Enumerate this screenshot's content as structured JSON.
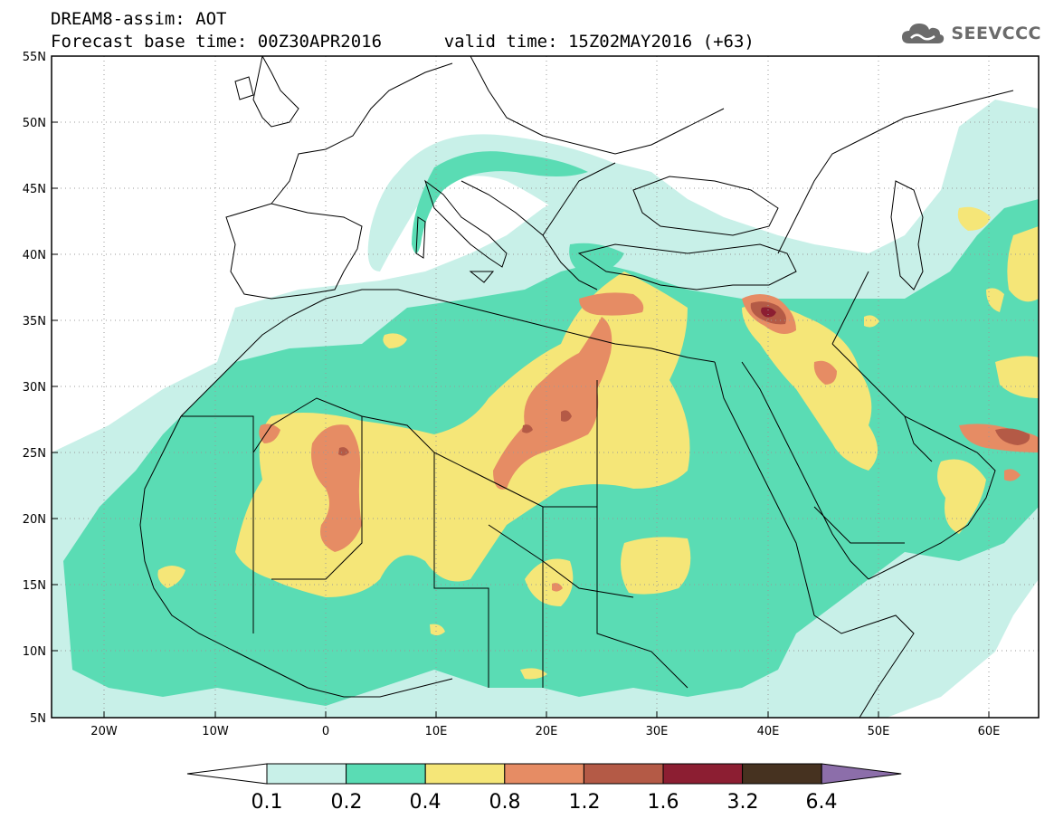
{
  "header": {
    "title": "DREAM8-assim: AOT",
    "base_time": "Forecast base time: 00Z30APR2016",
    "valid_time": "valid time: 15Z02MAY2016 (+63)"
  },
  "logo": {
    "text": "SEEVCCC",
    "icon": "cloud-icon"
  },
  "map": {
    "lon_labels": [
      "20W",
      "10W",
      "0",
      "10E",
      "20E",
      "30E",
      "40E",
      "50E",
      "60E"
    ],
    "lat_labels": [
      "55N",
      "50N",
      "45N",
      "40N",
      "35N",
      "30N",
      "25N",
      "20N",
      "15N",
      "10N",
      "5N"
    ]
  },
  "legend": {
    "labels": [
      "0.1",
      "0.2",
      "0.4",
      "0.8",
      "1.2",
      "1.6",
      "3.2",
      "6.4"
    ],
    "colors": [
      "#ffffff",
      "#c8f0e8",
      "#5adcb4",
      "#f5e678",
      "#e68c64",
      "#b45a46",
      "#8c1e32",
      "#463220",
      "#8c6eaa"
    ]
  },
  "palette": {
    "c1": "#c8f0e8",
    "c2": "#5adcb4",
    "c3": "#f5e678",
    "c4": "#e68c64",
    "c5": "#b45a46",
    "c6": "#8c1e32"
  }
}
